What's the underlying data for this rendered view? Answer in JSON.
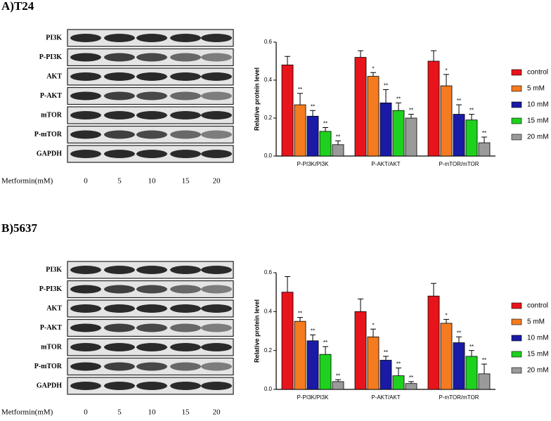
{
  "panels": [
    {
      "label": "A)T24",
      "blots": [
        "PI3K",
        "P-PI3K",
        "AKT",
        "P-AKT",
        "mTOR",
        "P-mTOR",
        "GAPDH"
      ],
      "dose_label": "Metformin(mM)",
      "doses": [
        "0",
        "5",
        "10",
        "15",
        "20"
      ]
    },
    {
      "label": "B)5637",
      "blots": [
        "PI3K",
        "P-PI3K",
        "AKT",
        "P-AKT",
        "mTOR",
        "P-mTOR",
        "GAPDH"
      ],
      "dose_label": "Metformin(mM)",
      "doses": [
        "0",
        "5",
        "10",
        "15",
        "20"
      ]
    }
  ],
  "chart_data": [
    {
      "type": "bar",
      "y_label": "Relative protein level",
      "categories": [
        "P-PI3K/PI3K",
        "P-AKT/AKT",
        "P-mTOR/mTOR"
      ],
      "ylim": [
        0,
        0.6
      ],
      "yticks": [
        {
          "value": 0,
          "label": "0.0"
        },
        0.2,
        0.4,
        0.6
      ],
      "series": [
        {
          "name": "control",
          "color": "#e8141b",
          "values": [
            0.48,
            0.52,
            0.5
          ],
          "errors": [
            0.045,
            0.035,
            0.055
          ]
        },
        {
          "name": "5  mM",
          "color": "#f47b20",
          "values": [
            0.27,
            0.42,
            0.37
          ],
          "errors": [
            0.06,
            0.02,
            0.06
          ],
          "sig": [
            "**",
            "*",
            "*"
          ]
        },
        {
          "name": "10 mM",
          "color": "#1a1aa6",
          "values": [
            0.21,
            0.28,
            0.22
          ],
          "errors": [
            0.03,
            0.07,
            0.05
          ],
          "sig": [
            "**",
            "**",
            "**"
          ]
        },
        {
          "name": "15 mM",
          "color": "#1fd11f",
          "values": [
            0.13,
            0.24,
            0.19
          ],
          "errors": [
            0.02,
            0.04,
            0.03
          ],
          "sig": [
            "**",
            "**",
            "**"
          ]
        },
        {
          "name": "20 mM",
          "color": "#9a9a9a",
          "values": [
            0.06,
            0.2,
            0.07
          ],
          "errors": [
            0.02,
            0.02,
            0.03
          ],
          "sig": [
            "**",
            "**",
            "**"
          ]
        }
      ]
    },
    {
      "type": "bar",
      "y_label": "Relative protein level",
      "categories": [
        "P-PI3K/PI3K",
        "P-AKT/AKT",
        "P-mTOR/mTOR"
      ],
      "ylim": [
        0,
        0.6
      ],
      "yticks": [
        {
          "value": 0,
          "label": "0.0"
        },
        0.2,
        0.4,
        0.6
      ],
      "series": [
        {
          "name": "control",
          "color": "#e8141b",
          "values": [
            0.5,
            0.4,
            0.48
          ],
          "errors": [
            0.08,
            0.065,
            0.065
          ]
        },
        {
          "name": "5  mM",
          "color": "#f47b20",
          "values": [
            0.35,
            0.27,
            0.34
          ],
          "errors": [
            0.02,
            0.04,
            0.02
          ],
          "sig": [
            "**",
            "*",
            "*"
          ]
        },
        {
          "name": "10 mM",
          "color": "#1a1aa6",
          "values": [
            0.25,
            0.15,
            0.24
          ],
          "errors": [
            0.03,
            0.02,
            0.03
          ],
          "sig": [
            "**",
            "**",
            "**"
          ]
        },
        {
          "name": "15 mM",
          "color": "#1fd11f",
          "values": [
            0.18,
            0.07,
            0.17
          ],
          "errors": [
            0.04,
            0.04,
            0.03
          ],
          "sig": [
            "**",
            "**",
            "**"
          ]
        },
        {
          "name": "20 mM",
          "color": "#9a9a9a",
          "values": [
            0.04,
            0.03,
            0.08
          ],
          "errors": [
            0.01,
            0.01,
            0.05
          ],
          "sig": [
            "**",
            "**",
            "**"
          ]
        }
      ]
    }
  ]
}
